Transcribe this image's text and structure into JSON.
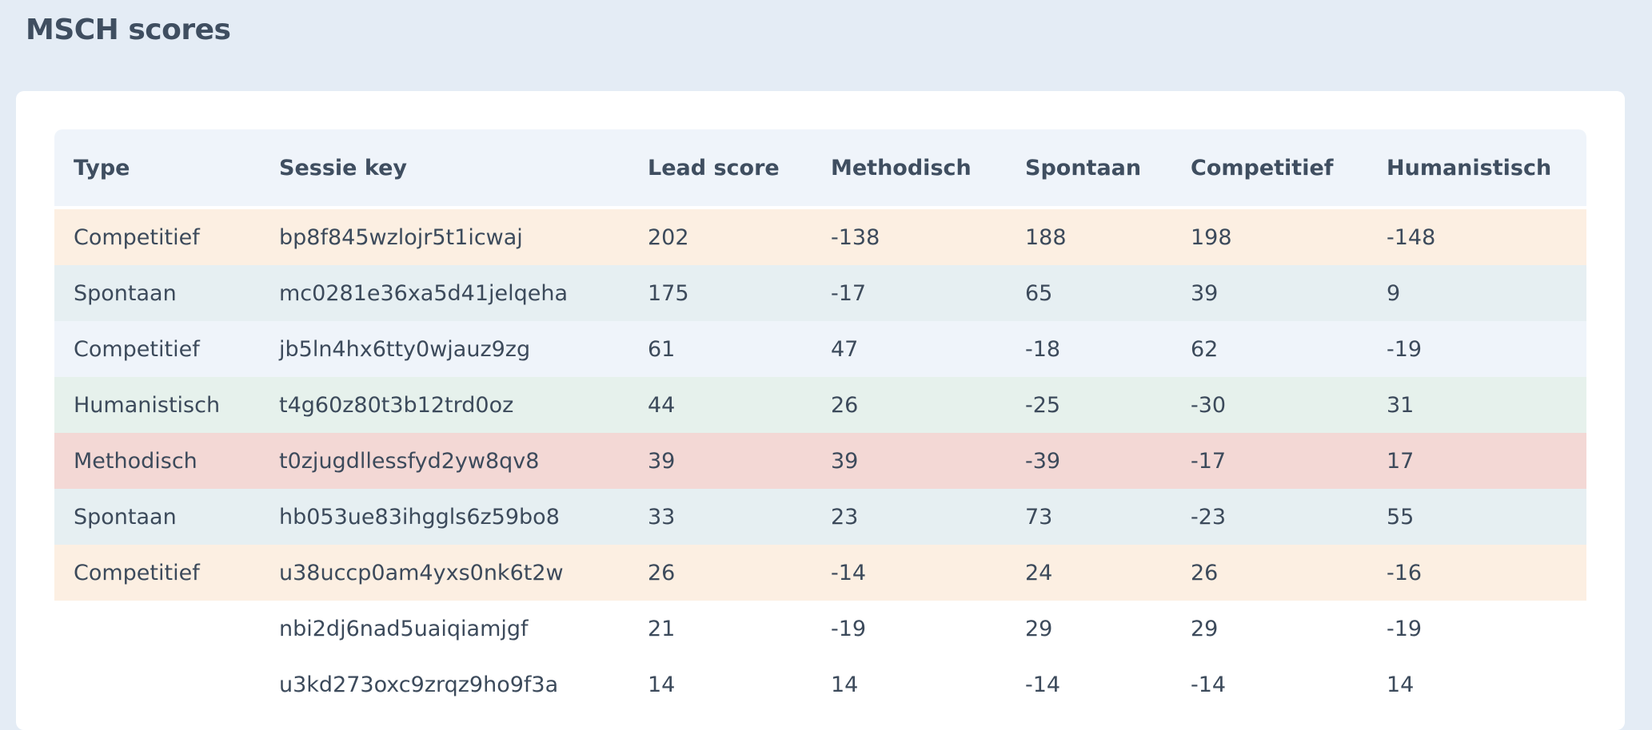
{
  "page": {
    "title": "MSCH scores"
  },
  "colors": {
    "Competitief": "#fcefe2",
    "Spontaan": "#e6eff2",
    "Humanistisch": "#e6f1ec",
    "Methodisch": "#f3d8d5",
    "CompetitiefAlt": "#eff4fa",
    "none": "#ffffff"
  },
  "table": {
    "headers": [
      "Type",
      "Sessie key",
      "Lead score",
      "Methodisch",
      "Spontaan",
      "Competitief",
      "Humanistisch"
    ],
    "rows": [
      {
        "type": "Competitief",
        "key": "bp8f845wzlojr5t1icwaj",
        "lead": "202",
        "methodisch": "-138",
        "spontaan": "188",
        "competitief": "198",
        "humanistisch": "-148",
        "bg": "#fcefe2"
      },
      {
        "type": "Spontaan",
        "key": "mc0281e36xa5d41jelqeha",
        "lead": "175",
        "methodisch": "-17",
        "spontaan": "65",
        "competitief": "39",
        "humanistisch": "9",
        "bg": "#e6eff2"
      },
      {
        "type": "Competitief",
        "key": "jb5ln4hx6tty0wjauz9zg",
        "lead": "61",
        "methodisch": "47",
        "spontaan": "-18",
        "competitief": "62",
        "humanistisch": "-19",
        "bg": "#eff4fa"
      },
      {
        "type": "Humanistisch",
        "key": "t4g60z80t3b12trd0oz",
        "lead": "44",
        "methodisch": "26",
        "spontaan": "-25",
        "competitief": "-30",
        "humanistisch": "31",
        "bg": "#e6f1ec"
      },
      {
        "type": "Methodisch",
        "key": "t0zjugdllessfyd2yw8qv8",
        "lead": "39",
        "methodisch": "39",
        "spontaan": "-39",
        "competitief": "-17",
        "humanistisch": "17",
        "bg": "#f3d8d5"
      },
      {
        "type": "Spontaan",
        "key": "hb053ue83ihggls6z59bo8",
        "lead": "33",
        "methodisch": "23",
        "spontaan": "73",
        "competitief": "-23",
        "humanistisch": "55",
        "bg": "#e6eff2"
      },
      {
        "type": "Competitief",
        "key": "u38uccp0am4yxs0nk6t2w",
        "lead": "26",
        "methodisch": "-14",
        "spontaan": "24",
        "competitief": "26",
        "humanistisch": "-16",
        "bg": "#fcefe2"
      },
      {
        "type": "",
        "key": "nbi2dj6nad5uaiqiamjgf",
        "lead": "21",
        "methodisch": "-19",
        "spontaan": "29",
        "competitief": "29",
        "humanistisch": "-19",
        "bg": "#ffffff"
      },
      {
        "type": "",
        "key": "u3kd273oxc9zrqz9ho9f3a",
        "lead": "14",
        "methodisch": "14",
        "spontaan": "-14",
        "competitief": "-14",
        "humanistisch": "14",
        "bg": "#ffffff"
      }
    ]
  }
}
